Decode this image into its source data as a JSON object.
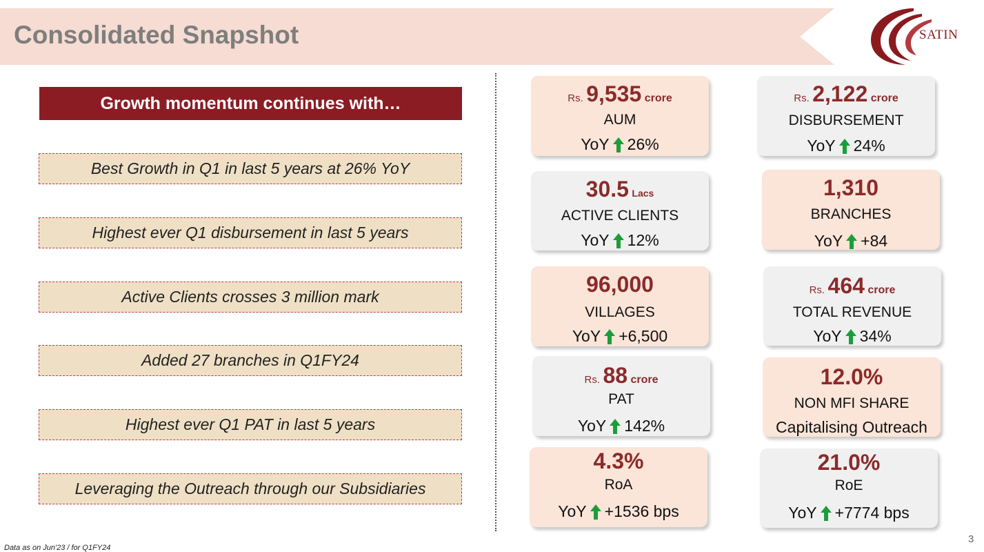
{
  "title": "Consolidated Snapshot",
  "logo_text": "SATIN",
  "banner": "Growth momentum continues with…",
  "points": [
    "Best Growth in Q1 in last 5 years at 26% YoY",
    "Highest ever Q1 disbursement in last 5 years",
    "Active Clients crosses 3 million mark",
    "Added 27 branches in Q1FY24",
    "Highest ever Q1 PAT in last 5 years",
    "Leveraging the Outreach through our Subsidiaries"
  ],
  "metrics": {
    "aum": {
      "prefix": "Rs.",
      "value": "9,535",
      "unit": "crore",
      "label": "AUM",
      "yoy": "YoY",
      "change": "26%"
    },
    "disbursement": {
      "prefix": "Rs.",
      "value": "2,122",
      "unit": "crore",
      "label": "DISBURSEMENT",
      "yoy": "YoY",
      "change": "24%"
    },
    "clients": {
      "value": "30.5",
      "unit": "Lacs",
      "label": "ACTIVE CLIENTS",
      "yoy": "YoY",
      "change": "12%"
    },
    "branches": {
      "value": "1,310",
      "label": "BRANCHES",
      "yoy": "YoY",
      "change": "+84"
    },
    "villages": {
      "value": "96,000",
      "label": "VILLAGES",
      "yoy": "YoY",
      "change": "+6,500"
    },
    "revenue": {
      "prefix": "Rs.",
      "value": "464",
      "unit": "crore",
      "label": "TOTAL REVENUE",
      "yoy": "YoY",
      "change": "34%"
    },
    "pat": {
      "prefix": "Rs.",
      "value": "88",
      "unit": "crore",
      "label": "PAT",
      "yoy": "YoY",
      "change": "142%"
    },
    "nonmfi": {
      "value": "12.0%",
      "label": "NON MFI SHARE",
      "sublabel": "Capitalising Outreach"
    },
    "roa": {
      "value": "4.3%",
      "label": "RoA",
      "yoy": "YoY",
      "change": "+1536 bps"
    },
    "roe": {
      "value": "21.0%",
      "label": "RoE",
      "yoy": "YoY",
      "change": "+7774 bps"
    }
  },
  "colors": {
    "accent": "#8b1c24",
    "up_arrow": "#1a9e3a",
    "pink_card": "#fbe4d8",
    "grey_card": "#f0f0f0",
    "point_bg": "#efe0c5"
  },
  "icons": {
    "up_arrow": "arrow-up-icon"
  },
  "footer": "Data as on Jun'23 / for Q1FY24",
  "page_number": "3"
}
